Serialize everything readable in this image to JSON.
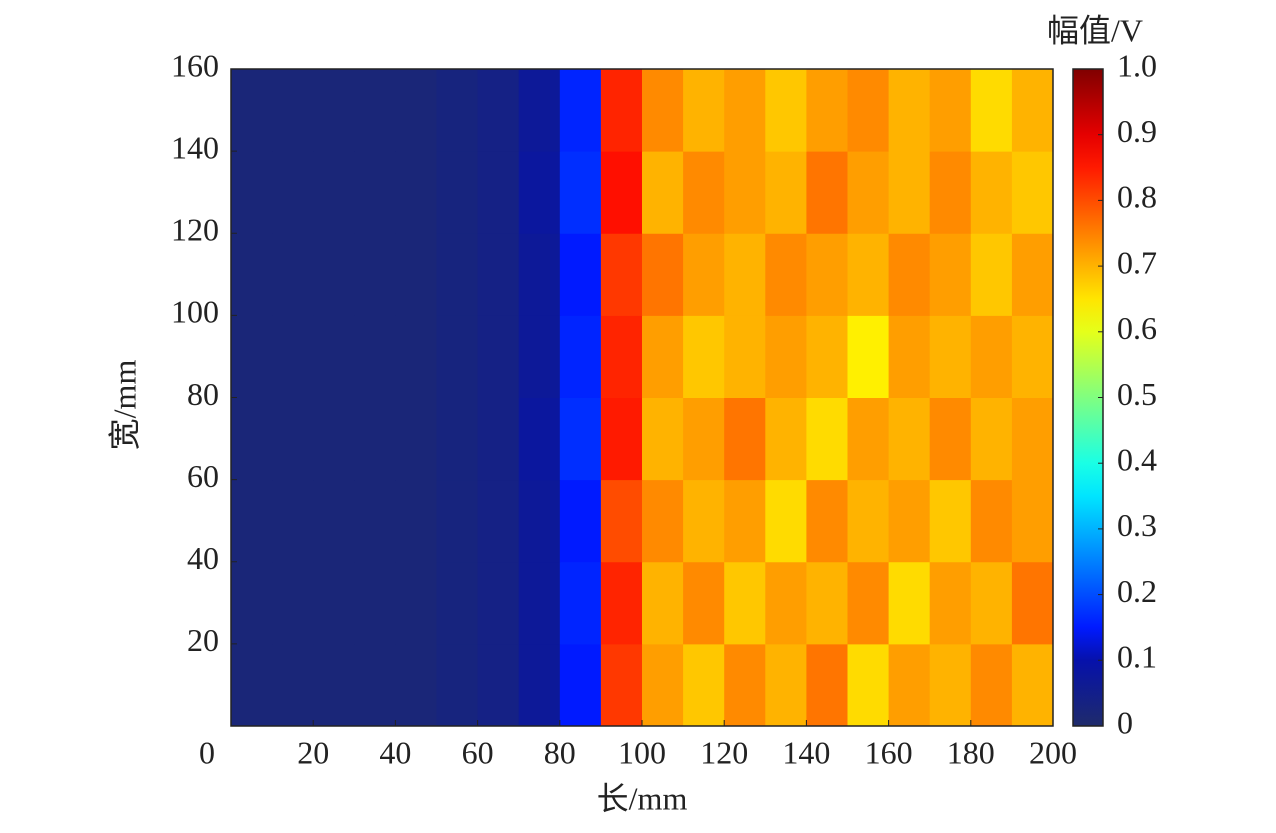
{
  "chart_data": {
    "type": "heatmap",
    "xlabel": "长/mm",
    "ylabel": "宽/mm",
    "colorbar_label": "幅值/V",
    "colormap": "jet",
    "x": [
      0,
      10,
      20,
      30,
      40,
      50,
      60,
      70,
      80,
      90,
      100,
      110,
      120,
      130,
      140,
      150,
      160,
      170,
      180,
      190,
      200
    ],
    "y": [
      0,
      20,
      40,
      60,
      80,
      100,
      120,
      140,
      160
    ],
    "z": [
      [
        0.02,
        0.02,
        0.02,
        0.02,
        0.02,
        0.03,
        0.04,
        0.07,
        0.15,
        0.82,
        0.72,
        0.68,
        0.74,
        0.7,
        0.76,
        0.66,
        0.72,
        0.7,
        0.74,
        0.7
      ],
      [
        0.02,
        0.02,
        0.02,
        0.02,
        0.02,
        0.03,
        0.04,
        0.07,
        0.16,
        0.84,
        0.7,
        0.74,
        0.68,
        0.72,
        0.7,
        0.74,
        0.66,
        0.72,
        0.7,
        0.76
      ],
      [
        0.02,
        0.02,
        0.02,
        0.02,
        0.02,
        0.03,
        0.04,
        0.07,
        0.15,
        0.8,
        0.74,
        0.7,
        0.72,
        0.66,
        0.74,
        0.7,
        0.72,
        0.68,
        0.74,
        0.72
      ],
      [
        0.02,
        0.02,
        0.02,
        0.02,
        0.02,
        0.03,
        0.04,
        0.08,
        0.17,
        0.85,
        0.7,
        0.72,
        0.76,
        0.7,
        0.66,
        0.72,
        0.7,
        0.74,
        0.7,
        0.72
      ],
      [
        0.02,
        0.02,
        0.02,
        0.02,
        0.02,
        0.03,
        0.04,
        0.07,
        0.16,
        0.84,
        0.72,
        0.68,
        0.7,
        0.72,
        0.7,
        0.64,
        0.72,
        0.7,
        0.72,
        0.7
      ],
      [
        0.02,
        0.02,
        0.02,
        0.02,
        0.02,
        0.03,
        0.04,
        0.07,
        0.15,
        0.82,
        0.76,
        0.72,
        0.7,
        0.74,
        0.72,
        0.7,
        0.74,
        0.72,
        0.68,
        0.72
      ],
      [
        0.02,
        0.02,
        0.02,
        0.02,
        0.02,
        0.03,
        0.04,
        0.08,
        0.17,
        0.86,
        0.7,
        0.74,
        0.72,
        0.7,
        0.76,
        0.72,
        0.7,
        0.74,
        0.7,
        0.68
      ],
      [
        0.02,
        0.02,
        0.02,
        0.02,
        0.02,
        0.03,
        0.04,
        0.07,
        0.16,
        0.84,
        0.74,
        0.7,
        0.72,
        0.68,
        0.72,
        0.74,
        0.7,
        0.72,
        0.66,
        0.7
      ]
    ],
    "xlim": [
      0,
      200
    ],
    "xticks": [
      0,
      20,
      40,
      60,
      80,
      100,
      120,
      140,
      160,
      180,
      200
    ],
    "ylim": [
      0,
      160
    ],
    "yticks": [
      20,
      40,
      60,
      80,
      100,
      120,
      140,
      160
    ],
    "zlim": [
      0,
      1
    ],
    "zticks": [
      0,
      0.1,
      0.2,
      0.3,
      0.4,
      0.5,
      0.6,
      0.7,
      0.8,
      0.9,
      {
        "value": 1,
        "label": "1.0"
      }
    ]
  }
}
